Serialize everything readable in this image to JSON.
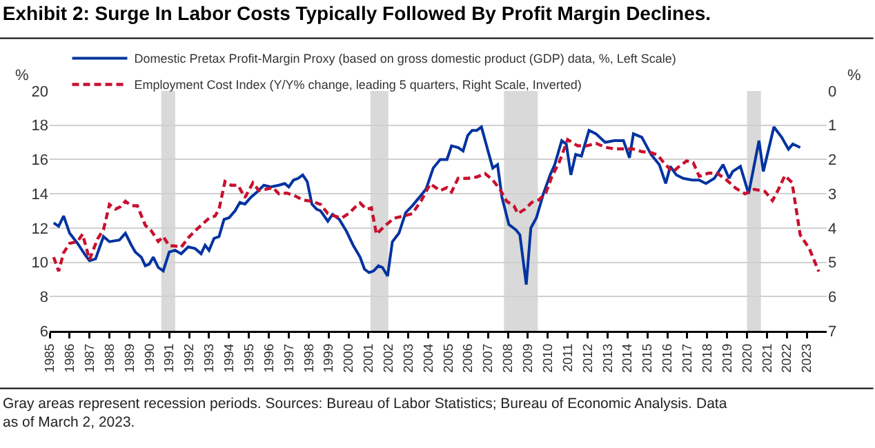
{
  "chart_data": {
    "type": "line",
    "title": "Exhibit 2: Surge In Labor Costs Typically Followed By Profit Margin Declines.",
    "ylabel": "%",
    "y2label": "%",
    "annotations": [
      "Gray areas represent recession periods. Sources: Bureau of Labor Statistics; Bureau of Economic Analysis. Data as of March 2, 2023."
    ],
    "xlim": [
      1985,
      2024
    ],
    "xticks": [
      1985,
      1986,
      1987,
      1988,
      1989,
      1990,
      1991,
      1992,
      1993,
      1994,
      1995,
      1996,
      1997,
      1998,
      1999,
      2000,
      2001,
      2002,
      2003,
      2004,
      2005,
      2006,
      2007,
      2008,
      2009,
      2010,
      2011,
      2012,
      2013,
      2014,
      2015,
      2016,
      2017,
      2018,
      2019,
      2020,
      2021,
      2022,
      2023
    ],
    "ylim": [
      6,
      20
    ],
    "yticks": [
      6,
      8,
      10,
      12,
      14,
      16,
      18,
      20
    ],
    "y2lim": [
      7,
      0
    ],
    "y2ticks": [
      0,
      1,
      2,
      3,
      4,
      5,
      6,
      7
    ],
    "grid": "y",
    "legend": "top left",
    "marker": "none",
    "bands": [
      {
        "axis": "x",
        "from": 1990.6,
        "to": 1991.3,
        "color": "#d9d9d9"
      },
      {
        "axis": "x",
        "from": 2001.1,
        "to": 2002.0,
        "color": "#d9d9d9"
      },
      {
        "axis": "x",
        "from": 2007.8,
        "to": 2009.5,
        "color": "#d9d9d9"
      },
      {
        "axis": "x",
        "from": 2020.0,
        "to": 2020.7,
        "color": "#d9d9d9"
      }
    ],
    "series": [
      {
        "name": "Domestic Pretax Profit-Margin Proxy (based on gross domestic product (GDP) data, %, Left Scale)",
        "color": "#0033a0",
        "line_style": "solid",
        "x": [
          1985.2,
          1985.45,
          1985.7,
          1986.0,
          1986.4,
          1986.8,
          1987.0,
          1987.3,
          1987.7,
          1988.0,
          1988.5,
          1988.8,
          1989.1,
          1989.3,
          1989.6,
          1989.8,
          1990.0,
          1990.2,
          1990.45,
          1990.7,
          1991.0,
          1991.3,
          1991.6,
          1991.95,
          1992.3,
          1992.6,
          1992.8,
          1993.0,
          1993.25,
          1993.5,
          1993.75,
          1994.0,
          1994.3,
          1994.55,
          1994.8,
          1995.1,
          1995.4,
          1995.75,
          1996.1,
          1996.5,
          1996.8,
          1997.0,
          1997.24,
          1997.47,
          1997.7,
          1997.93,
          1998.16,
          1998.4,
          1998.6,
          1998.96,
          1999.2,
          1999.54,
          1999.9,
          2000.23,
          2000.58,
          2000.8,
          2001.03,
          2001.26,
          2001.5,
          2001.7,
          2001.96,
          2002.2,
          2002.53,
          2002.87,
          2003.2,
          2003.56,
          2003.9,
          2004.25,
          2004.6,
          2004.94,
          2005.17,
          2005.5,
          2005.75,
          2005.98,
          2006.2,
          2006.44,
          2006.67,
          2007.0,
          2007.24,
          2007.48,
          2007.7,
          2008.05,
          2008.4,
          2008.6,
          2008.92,
          2009.15,
          2009.43,
          2009.78,
          2010.12,
          2010.35,
          2010.7,
          2010.93,
          2011.16,
          2011.4,
          2011.69,
          2012.07,
          2012.42,
          2012.88,
          2013.34,
          2013.8,
          2014.1,
          2014.3,
          2014.72,
          2015.18,
          2015.6,
          2015.92,
          2016.15,
          2016.45,
          2016.8,
          2017.25,
          2017.6,
          2017.94,
          2018.36,
          2018.8,
          2019.1,
          2019.28,
          2019.67,
          2020.08,
          2020.6,
          2020.82,
          2021.35,
          2021.74,
          2022.08,
          2022.3,
          2022.67
        ],
        "values": [
          12.3,
          12.1,
          12.7,
          11.7,
          11.1,
          10.4,
          10.1,
          10.2,
          11.5,
          11.2,
          11.3,
          11.7,
          11.0,
          10.6,
          10.3,
          9.8,
          9.9,
          10.3,
          9.7,
          9.5,
          10.6,
          10.7,
          10.5,
          10.9,
          10.8,
          10.5,
          11.0,
          10.7,
          11.4,
          11.5,
          12.5,
          12.6,
          13.0,
          13.5,
          13.4,
          13.8,
          14.1,
          14.5,
          14.4,
          14.5,
          14.6,
          14.4,
          14.8,
          14.9,
          15.1,
          14.7,
          13.4,
          13.1,
          13.0,
          12.4,
          12.8,
          12.5,
          11.8,
          11.0,
          10.3,
          9.6,
          9.4,
          9.5,
          9.8,
          9.7,
          9.2,
          11.2,
          11.7,
          12.9,
          13.3,
          13.8,
          14.3,
          15.5,
          16.0,
          16.0,
          16.8,
          16.7,
          16.5,
          17.4,
          17.7,
          17.7,
          17.9,
          16.5,
          15.5,
          15.7,
          13.8,
          12.2,
          11.9,
          11.6,
          8.7,
          12.0,
          12.6,
          14.0,
          15.1,
          15.7,
          17.1,
          16.9,
          15.1,
          16.3,
          16.2,
          17.7,
          17.5,
          17.0,
          17.1,
          17.1,
          16.1,
          17.5,
          17.3,
          16.3,
          15.7,
          14.6,
          15.6,
          15.1,
          14.9,
          14.8,
          14.8,
          14.6,
          14.9,
          15.7,
          14.9,
          15.3,
          15.6,
          14.0,
          17.1,
          15.3,
          17.9,
          17.3,
          16.6,
          16.9,
          16.7
        ]
      },
      {
        "name": "Employment Cost Index (Y/Y% change, leading 5 quarters, Right Scale, Inverted)",
        "color": "#c8102e",
        "line_style": "dashed",
        "axis": "y2",
        "x": [
          1985.2,
          1985.45,
          1985.7,
          1986.0,
          1986.4,
          1986.65,
          1987.0,
          1987.4,
          1987.7,
          1988.0,
          1988.3,
          1988.55,
          1988.8,
          1989.1,
          1989.4,
          1989.8,
          1990.1,
          1990.45,
          1990.7,
          1991.0,
          1991.25,
          1991.6,
          1991.95,
          1992.3,
          1992.6,
          1993.0,
          1993.3,
          1993.5,
          1993.8,
          1994.1,
          1994.45,
          1994.8,
          1995.2,
          1995.5,
          1995.85,
          1996.2,
          1996.5,
          1996.9,
          1997.24,
          1997.7,
          1998.16,
          1998.6,
          1998.96,
          1999.3,
          1999.65,
          2000.0,
          2000.35,
          2000.58,
          2000.9,
          2001.15,
          2001.4,
          2001.85,
          2002.3,
          2002.76,
          2003.2,
          2003.67,
          2004.1,
          2004.6,
          2004.94,
          2005.17,
          2005.5,
          2006.0,
          2006.44,
          2006.85,
          2007.24,
          2007.6,
          2007.94,
          2008.3,
          2008.5,
          2008.85,
          2009.2,
          2009.55,
          2009.9,
          2010.2,
          2010.58,
          2011.0,
          2011.5,
          2011.96,
          2012.42,
          2012.88,
          2013.34,
          2013.8,
          2014.26,
          2014.72,
          2015.18,
          2015.52,
          2015.87,
          2016.28,
          2016.6,
          2016.97,
          2017.3,
          2017.6,
          2018.06,
          2018.5,
          2018.98,
          2019.44,
          2019.9,
          2020.36,
          2020.9,
          2021.28,
          2021.58,
          2021.9,
          2022.26,
          2022.67,
          2023.13,
          2023.6
        ],
        "values": [
          4.85,
          5.26,
          4.72,
          4.45,
          4.39,
          4.18,
          4.92,
          4.32,
          4.05,
          3.31,
          3.45,
          3.38,
          3.22,
          3.35,
          3.35,
          3.92,
          4.08,
          4.39,
          4.25,
          4.52,
          4.52,
          4.56,
          4.29,
          4.08,
          3.92,
          3.71,
          3.65,
          3.45,
          2.64,
          2.75,
          2.75,
          3.11,
          2.68,
          2.91,
          2.87,
          2.82,
          3.0,
          2.98,
          3.04,
          3.18,
          3.22,
          3.31,
          3.58,
          3.65,
          3.71,
          3.58,
          3.38,
          3.27,
          3.45,
          3.41,
          4.18,
          3.92,
          3.71,
          3.65,
          3.58,
          3.18,
          2.71,
          2.91,
          2.82,
          2.95,
          2.55,
          2.55,
          2.51,
          2.41,
          2.6,
          2.87,
          3.22,
          3.35,
          3.58,
          3.45,
          3.25,
          3.18,
          2.98,
          2.51,
          2.07,
          1.42,
          1.6,
          1.6,
          1.53,
          1.64,
          1.69,
          1.69,
          1.69,
          1.77,
          1.8,
          1.87,
          2.13,
          2.36,
          2.2,
          2.04,
          2.09,
          2.49,
          2.4,
          2.4,
          2.6,
          2.84,
          3.0,
          2.87,
          2.93,
          3.2,
          2.87,
          2.47,
          2.67,
          4.2,
          4.6,
          5.27
        ]
      }
    ]
  }
}
